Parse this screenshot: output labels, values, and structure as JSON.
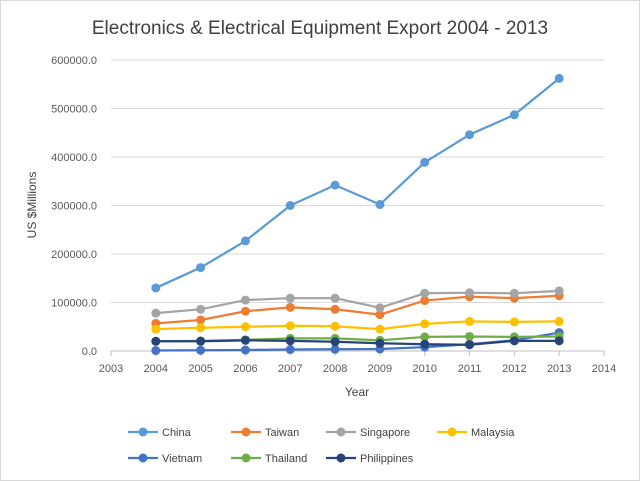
{
  "chart_data": {
    "type": "line",
    "title": "Electronics & Electrical Equipment Export 2004 - 2013",
    "xlabel": "Year",
    "ylabel": "US $Millions",
    "x": [
      2004,
      2005,
      2006,
      2007,
      2008,
      2009,
      2010,
      2011,
      2012,
      2013
    ],
    "xlim": [
      2003,
      2014
    ],
    "ylim": [
      0,
      600000
    ],
    "x_ticks": [
      "2003",
      "2004",
      "2005",
      "2006",
      "2007",
      "2008",
      "2009",
      "2010",
      "2011",
      "2012",
      "2013",
      "2014"
    ],
    "y_ticks": [
      "0.0",
      "100000.0",
      "200000.0",
      "300000.0",
      "400000.0",
      "500000.0",
      "600000.0"
    ],
    "grid": "horizontal",
    "legend_position": "bottom",
    "series": [
      {
        "name": "China",
        "color": "#5B9BD5",
        "values": [
          130000,
          172000,
          227000,
          300000,
          342000,
          302000,
          389000,
          446000,
          487000,
          562000
        ]
      },
      {
        "name": "Taiwan",
        "color": "#ED7D31",
        "values": [
          57000,
          64000,
          82000,
          90000,
          86000,
          75000,
          104000,
          112000,
          109000,
          114000
        ]
      },
      {
        "name": "Singapore",
        "color": "#A5A5A5",
        "values": [
          78000,
          86000,
          105000,
          109000,
          109000,
          89000,
          119000,
          120000,
          119000,
          124000
        ]
      },
      {
        "name": "Malaysia",
        "color": "#FFC000",
        "values": [
          45000,
          48000,
          50000,
          52000,
          51000,
          45000,
          56000,
          61000,
          60000,
          61000
        ]
      },
      {
        "name": "Vietnam",
        "color": "#4472C4",
        "values": [
          1000,
          1500,
          2000,
          3000,
          3500,
          4000,
          8000,
          14000,
          22000,
          38000
        ]
      },
      {
        "name": "Thailand",
        "color": "#70AD47",
        "values": [
          20000,
          21000,
          23000,
          26000,
          26000,
          22000,
          29000,
          30000,
          29000,
          30000
        ]
      },
      {
        "name": "Philippines",
        "color": "#264478",
        "values": [
          20000,
          20000,
          22000,
          21000,
          19000,
          16000,
          14000,
          13000,
          21000,
          21000
        ]
      }
    ]
  }
}
